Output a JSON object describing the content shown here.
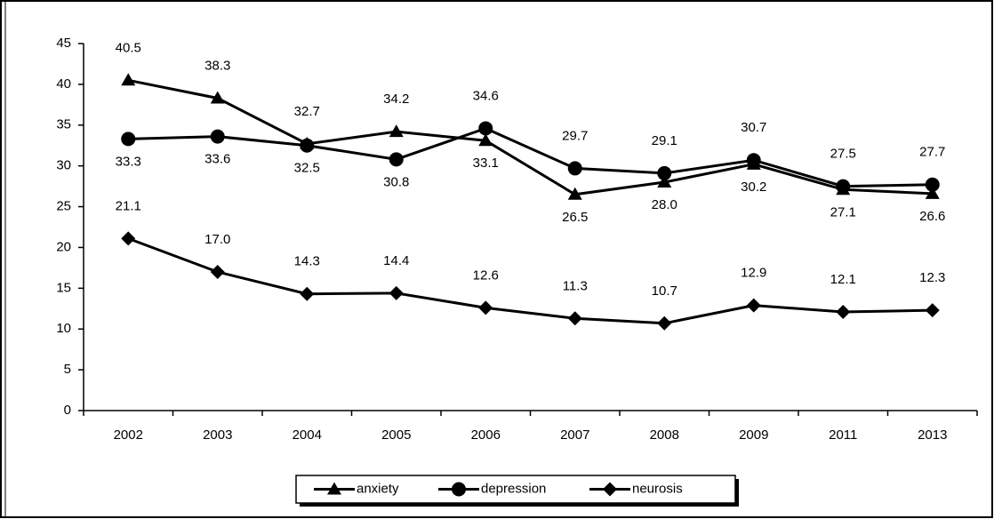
{
  "chart_data": {
    "type": "line",
    "categories": [
      "2002",
      "2003",
      "2004",
      "2005",
      "2006",
      "2007",
      "2008",
      "2009",
      "2011",
      "2013"
    ],
    "series": [
      {
        "name": "anxiety",
        "color": "#000000",
        "marker": "triangle",
        "values": [
          40.5,
          38.3,
          32.7,
          34.2,
          33.1,
          26.5,
          28.0,
          30.2,
          27.1,
          26.6
        ],
        "value_labels": [
          "40.5",
          "38.3",
          "32.7",
          "34.2",
          "33.1",
          "26.5",
          "28.0",
          "30.2",
          "27.1",
          "26.6"
        ]
      },
      {
        "name": "depression",
        "color": "#000000",
        "marker": "circle",
        "values": [
          33.3,
          33.6,
          32.5,
          30.8,
          34.6,
          29.7,
          29.1,
          30.7,
          27.5,
          27.7
        ],
        "value_labels": [
          "33.3",
          "33.6",
          "32.5",
          "30.8",
          "34.6",
          "29.7",
          "29.1",
          "30.7",
          "27.5",
          "27.7"
        ]
      },
      {
        "name": "neurosis",
        "color": "#000000",
        "marker": "diamond",
        "values": [
          21.1,
          17.0,
          14.3,
          14.4,
          12.6,
          11.3,
          10.7,
          12.9,
          12.1,
          12.3
        ],
        "value_labels": [
          "21.1",
          "17.0",
          "14.3",
          "14.4",
          "12.6",
          "11.3",
          "10.7",
          "12.9",
          "12.1",
          "12.3"
        ]
      }
    ],
    "ylim": [
      0,
      45
    ],
    "yticks": [
      0,
      5,
      10,
      15,
      20,
      25,
      30,
      35,
      40,
      45
    ],
    "grid": false,
    "legend": "bottom"
  }
}
